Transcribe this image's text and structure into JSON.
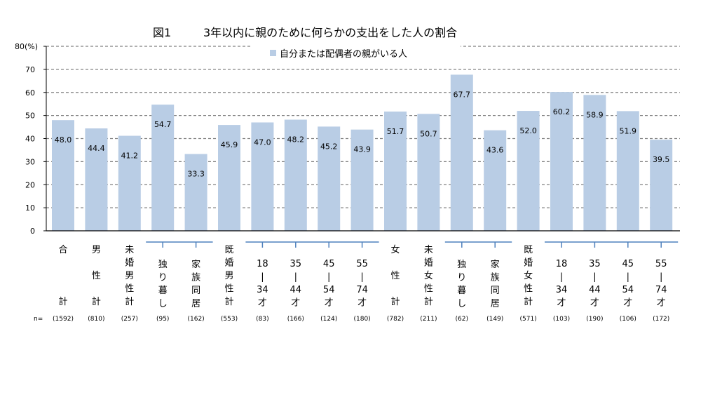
{
  "figure_label": "図1",
  "title": "3年以内に親のために何らかの支出をした人の割合",
  "chart_data": {
    "type": "bar",
    "legend_position": "top-center",
    "grid": true,
    "ylim": [
      0,
      80
    ],
    "y_ticks": [
      "0",
      "10",
      "20",
      "30",
      "40",
      "50",
      "60",
      "70",
      "80(%)"
    ],
    "bar_color": "#b9cde5",
    "series": [
      {
        "name": "自分または配偶者の親がいる人",
        "values": [
          48.0,
          44.4,
          41.2,
          54.7,
          33.3,
          45.9,
          47.0,
          48.2,
          45.2,
          43.9,
          51.7,
          50.7,
          67.7,
          43.6,
          52.0,
          60.2,
          58.9,
          51.9,
          39.5
        ]
      }
    ],
    "value_labels": [
      "48.0",
      "44.4",
      "41.2",
      "54.7",
      "33.3",
      "45.9",
      "47.0",
      "48.2",
      "45.2",
      "43.9",
      "51.7",
      "50.7",
      "67.7",
      "43.6",
      "52.0",
      "60.2",
      "58.9",
      "51.9",
      "39.5"
    ],
    "categories": [
      [
        "合",
        "",
        "計"
      ],
      [
        "男",
        "性",
        "計"
      ],
      [
        "未",
        "婚",
        "男",
        "性",
        "計"
      ],
      [
        "独",
        "り",
        "暮",
        "し"
      ],
      [
        "家",
        "族",
        "同",
        "居"
      ],
      [
        "既",
        "婚",
        "男",
        "性",
        "計"
      ],
      [
        "18",
        "|",
        "34",
        "才"
      ],
      [
        "35",
        "|",
        "44",
        "才"
      ],
      [
        "45",
        "|",
        "54",
        "才"
      ],
      [
        "55",
        "|",
        "74",
        "才"
      ],
      [
        "女",
        "性",
        "計"
      ],
      [
        "未",
        "婚",
        "女",
        "性",
        "計"
      ],
      [
        "独",
        "り",
        "暮",
        "し"
      ],
      [
        "家",
        "族",
        "同",
        "居"
      ],
      [
        "既",
        "婚",
        "女",
        "性",
        "計"
      ],
      [
        "18",
        "|",
        "34",
        "才"
      ],
      [
        "35",
        "|",
        "44",
        "才"
      ],
      [
        "45",
        "|",
        "54",
        "才"
      ],
      [
        "55",
        "|",
        "74",
        "才"
      ]
    ],
    "n_label": "n=",
    "n_values": [
      "(1592)",
      "(810)",
      "(257)",
      "(95)",
      "(162)",
      "(553)",
      "(83)",
      "(166)",
      "(124)",
      "(180)",
      "(782)",
      "(211)",
      "(62)",
      "(149)",
      "(571)",
      "(103)",
      "(190)",
      "(106)",
      "(172)"
    ]
  }
}
